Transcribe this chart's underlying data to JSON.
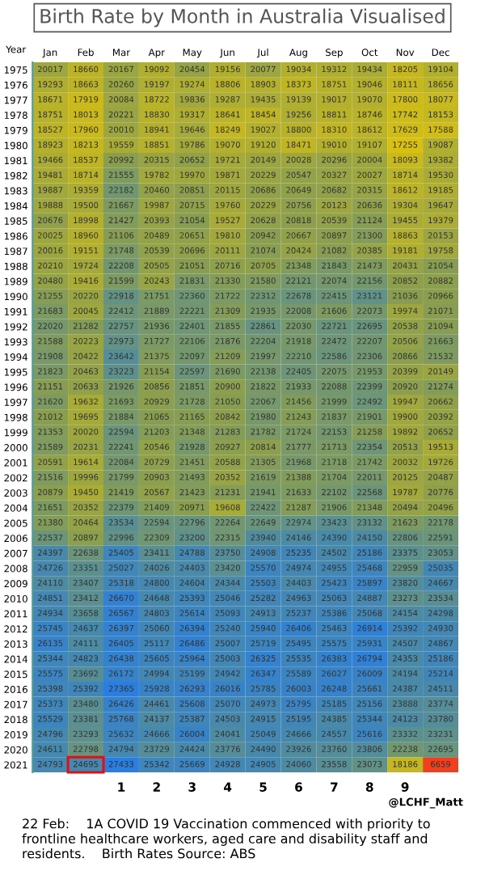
{
  "chart_data": {
    "type": "heatmap",
    "title": "Birth Rate by Month in Australia Visualised",
    "ylabel": "Year",
    "categories": [
      "Jan",
      "Feb",
      "Mar",
      "Apr",
      "May",
      "Jun",
      "Jul",
      "Aug",
      "Sep",
      "Oct",
      "Nov",
      "Dec"
    ],
    "y_categories": [
      "1975",
      "1976",
      "1977",
      "1978",
      "1979",
      "1980",
      "1981",
      "1982",
      "1983",
      "1984",
      "1985",
      "1986",
      "1987",
      "1988",
      "1989",
      "1990",
      "1991",
      "1992",
      "1993",
      "1994",
      "1995",
      "1996",
      "1997",
      "1998",
      "1999",
      "2000",
      "2001",
      "2002",
      "2003",
      "2004",
      "2005",
      "2006",
      "2007",
      "2008",
      "2009",
      "2010",
      "2011",
      "2012",
      "2013",
      "2014",
      "2015",
      "2016",
      "2017",
      "2018",
      "2019",
      "2020",
      "2021"
    ],
    "cells": [
      [
        20017,
        18660,
        20167,
        19092,
        20454,
        19156,
        20077,
        19034,
        19312,
        19434,
        18205,
        19104
      ],
      [
        19293,
        18663,
        20260,
        19197,
        19274,
        18806,
        18903,
        18373,
        18751,
        19046,
        18111,
        18656
      ],
      [
        18671,
        17919,
        20084,
        18722,
        19836,
        19287,
        19435,
        19139,
        19017,
        19070,
        17800,
        18077
      ],
      [
        18751,
        18013,
        20221,
        18830,
        19317,
        18641,
        18454,
        19256,
        18811,
        18746,
        17742,
        18153
      ],
      [
        18527,
        17960,
        20010,
        18941,
        19646,
        18249,
        19027,
        18800,
        18310,
        18612,
        17629,
        17588
      ],
      [
        18923,
        18213,
        19559,
        18851,
        19786,
        19070,
        19120,
        18471,
        19010,
        19107,
        17255,
        19087
      ],
      [
        19466,
        18537,
        20992,
        20315,
        20652,
        19721,
        20149,
        20028,
        20296,
        20004,
        18093,
        19382
      ],
      [
        19481,
        18714,
        21555,
        19782,
        19970,
        19871,
        20229,
        20547,
        20327,
        20027,
        18714,
        19530
      ],
      [
        19887,
        19359,
        22182,
        20460,
        20851,
        20115,
        20686,
        20649,
        20682,
        20315,
        18612,
        19185
      ],
      [
        19888,
        19500,
        21667,
        19987,
        20715,
        19760,
        20229,
        20756,
        20123,
        20636,
        19304,
        19647
      ],
      [
        20676,
        18998,
        21427,
        20393,
        21054,
        19527,
        20628,
        20818,
        20539,
        21124,
        19455,
        19379
      ],
      [
        20025,
        18960,
        21106,
        20489,
        20651,
        19810,
        20942,
        20667,
        20897,
        21300,
        18863,
        20153
      ],
      [
        20016,
        19151,
        21748,
        20539,
        20696,
        20111,
        21074,
        20424,
        21082,
        20385,
        19181,
        19758
      ],
      [
        20210,
        19724,
        22208,
        20505,
        21051,
        20716,
        20705,
        21348,
        21843,
        21473,
        20431,
        21054
      ],
      [
        20480,
        19416,
        21599,
        20243,
        21831,
        21330,
        21580,
        22121,
        22074,
        22156,
        20852,
        20882
      ],
      [
        21255,
        20220,
        22918,
        21751,
        22360,
        21722,
        22312,
        22678,
        22415,
        23121,
        21036,
        20966
      ],
      [
        21683,
        20045,
        22412,
        21889,
        22221,
        21309,
        21935,
        22008,
        21606,
        22073,
        19974,
        21071
      ],
      [
        22020,
        21282,
        22757,
        21936,
        22401,
        21855,
        22861,
        22030,
        22721,
        22695,
        20538,
        21094
      ],
      [
        21588,
        20223,
        22973,
        21727,
        22106,
        21876,
        22204,
        21918,
        22472,
        22207,
        20506,
        21663
      ],
      [
        21908,
        20422,
        23642,
        21375,
        22097,
        21209,
        21997,
        22210,
        22586,
        22306,
        20866,
        21532
      ],
      [
        21823,
        20463,
        23223,
        21154,
        22597,
        21690,
        22138,
        22405,
        22075,
        21953,
        20399,
        20149
      ],
      [
        21151,
        20633,
        21926,
        20856,
        21851,
        20900,
        21822,
        21933,
        22088,
        22399,
        20920,
        21274
      ],
      [
        21620,
        19632,
        21693,
        20929,
        21728,
        21050,
        22067,
        21456,
        21999,
        22492,
        19947,
        20662
      ],
      [
        21012,
        19695,
        21884,
        21065,
        21165,
        20842,
        21980,
        21243,
        21837,
        21901,
        19900,
        20392
      ],
      [
        21353,
        20020,
        22594,
        21203,
        21348,
        21283,
        21782,
        21724,
        22153,
        21258,
        19892,
        20652
      ],
      [
        21589,
        20231,
        22241,
        20546,
        21928,
        20927,
        20814,
        21777,
        21713,
        22354,
        20513,
        19513
      ],
      [
        20591,
        19614,
        22084,
        20729,
        21451,
        20588,
        21305,
        21968,
        21718,
        21742,
        20032,
        19726
      ],
      [
        21516,
        19996,
        21799,
        20903,
        21493,
        20352,
        21619,
        21388,
        21704,
        22011,
        20125,
        20487
      ],
      [
        20879,
        19450,
        21419,
        20567,
        21423,
        21231,
        21941,
        21633,
        22102,
        22568,
        19787,
        20776
      ],
      [
        21651,
        20352,
        22379,
        21409,
        20971,
        19608,
        22422,
        21287,
        21906,
        21348,
        20494,
        20496
      ],
      [
        21380,
        20464,
        23534,
        22594,
        22796,
        22264,
        22649,
        22974,
        23423,
        23132,
        21623,
        22178
      ],
      [
        22537,
        20897,
        22996,
        22309,
        23200,
        22315,
        23940,
        24146,
        24390,
        24150,
        22806,
        22591
      ],
      [
        24397,
        22638,
        25405,
        23411,
        24788,
        23750,
        24908,
        25235,
        24502,
        25186,
        23375,
        23053
      ],
      [
        24726,
        23351,
        25027,
        24026,
        24403,
        23420,
        25570,
        24974,
        24955,
        25468,
        22959,
        25035
      ],
      [
        24110,
        23407,
        25318,
        24800,
        24604,
        24344,
        25503,
        24403,
        25423,
        25897,
        23820,
        24667
      ],
      [
        24851,
        23412,
        26670,
        24648,
        25393,
        25046,
        25282,
        24963,
        25063,
        24887,
        23273,
        23534
      ],
      [
        24934,
        23658,
        26567,
        24803,
        25614,
        25093,
        24913,
        25237,
        25386,
        25068,
        24154,
        24298
      ],
      [
        25745,
        24637,
        26397,
        25060,
        26394,
        25240,
        25940,
        26406,
        25463,
        26914,
        25392,
        24930
      ],
      [
        26135,
        24111,
        26405,
        25117,
        26486,
        25007,
        25719,
        25495,
        25575,
        25931,
        24507,
        24867
      ],
      [
        25344,
        24823,
        26438,
        25605,
        25964,
        25003,
        26325,
        25535,
        26383,
        26794,
        24353,
        25186
      ],
      [
        25575,
        23692,
        26172,
        24994,
        25199,
        24942,
        26347,
        25589,
        26027,
        26009,
        24194,
        25214
      ],
      [
        25398,
        25392,
        27365,
        25928,
        26293,
        26016,
        25785,
        26003,
        26248,
        25661,
        24387,
        24511
      ],
      [
        25373,
        23480,
        26426,
        24461,
        25608,
        25070,
        24973,
        25795,
        25185,
        25156,
        23888,
        23774
      ],
      [
        25529,
        23381,
        25768,
        24137,
        25387,
        24503,
        24915,
        25195,
        24385,
        25344,
        24123,
        23780
      ],
      [
        24796,
        23293,
        25632,
        24666,
        26004,
        24041,
        25049,
        24666,
        24557,
        25616,
        23332,
        23231
      ],
      [
        24611,
        22798,
        24794,
        23729,
        24424,
        23776,
        24490,
        23926,
        23760,
        23806,
        22238,
        22695
      ],
      [
        24793,
        24695,
        27433,
        25342,
        25669,
        24928,
        24905,
        24060,
        23558,
        23073,
        18186,
        6659
      ]
    ],
    "data_labels": true,
    "annotations": [
      "1",
      "2",
      "3",
      "4",
      "5",
      "6",
      "7",
      "8",
      "9",
      "@LCHF_Matt",
      "22 Feb:    1A COVID 19 Vaccination commenced with priority to frontline healthcare workers, aged care and disability staff and residents.    Birth Rates Source: ABS"
    ]
  }
}
